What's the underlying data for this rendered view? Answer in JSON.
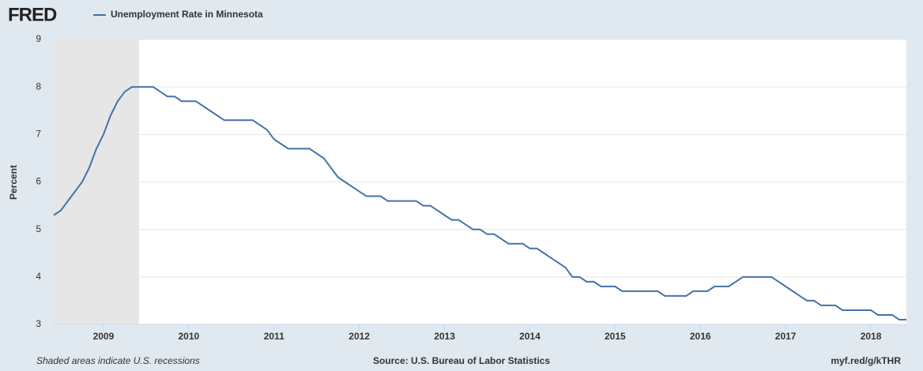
{
  "chart_data": {
    "type": "line",
    "brand": "FRED",
    "y_label": "Percent",
    "footer_left": "Shaded areas indicate U.S. recessions",
    "footer_center": "Source: U.S. Bureau of Labor Statistics",
    "footer_right": "myf.red/g/kTHR",
    "xlim": [
      "2008-06",
      "2018-06"
    ],
    "ylim": [
      3,
      9
    ],
    "yticks": [
      3,
      4,
      5,
      6,
      7,
      8,
      9
    ],
    "xticks": [
      {
        "value": "2009-01",
        "label": "2009"
      },
      {
        "value": "2010-01",
        "label": "2010"
      },
      {
        "value": "2011-01",
        "label": "2011"
      },
      {
        "value": "2012-01",
        "label": "2012"
      },
      {
        "value": "2013-01",
        "label": "2013"
      },
      {
        "value": "2014-01",
        "label": "2014"
      },
      {
        "value": "2015-01",
        "label": "2015"
      },
      {
        "value": "2016-01",
        "label": "2016"
      },
      {
        "value": "2017-01",
        "label": "2017"
      },
      {
        "value": "2018-01",
        "label": "2018"
      }
    ],
    "grid": true,
    "recessions": [
      [
        "2008-06",
        "2009-06"
      ]
    ],
    "x": [
      "2008-06",
      "2008-07",
      "2008-08",
      "2008-09",
      "2008-10",
      "2008-11",
      "2008-12",
      "2009-01",
      "2009-02",
      "2009-03",
      "2009-04",
      "2009-05",
      "2009-06",
      "2009-07",
      "2009-08",
      "2009-09",
      "2009-10",
      "2009-11",
      "2009-12",
      "2010-01",
      "2010-02",
      "2010-03",
      "2010-04",
      "2010-05",
      "2010-06",
      "2010-07",
      "2010-08",
      "2010-09",
      "2010-10",
      "2010-11",
      "2010-12",
      "2011-01",
      "2011-02",
      "2011-03",
      "2011-04",
      "2011-05",
      "2011-06",
      "2011-07",
      "2011-08",
      "2011-09",
      "2011-10",
      "2011-11",
      "2011-12",
      "2012-01",
      "2012-02",
      "2012-03",
      "2012-04",
      "2012-05",
      "2012-06",
      "2012-07",
      "2012-08",
      "2012-09",
      "2012-10",
      "2012-11",
      "2012-12",
      "2013-01",
      "2013-02",
      "2013-03",
      "2013-04",
      "2013-05",
      "2013-06",
      "2013-07",
      "2013-08",
      "2013-09",
      "2013-10",
      "2013-11",
      "2013-12",
      "2014-01",
      "2014-02",
      "2014-03",
      "2014-04",
      "2014-05",
      "2014-06",
      "2014-07",
      "2014-08",
      "2014-09",
      "2014-10",
      "2014-11",
      "2014-12",
      "2015-01",
      "2015-02",
      "2015-03",
      "2015-04",
      "2015-05",
      "2015-06",
      "2015-07",
      "2015-08",
      "2015-09",
      "2015-10",
      "2015-11",
      "2015-12",
      "2016-01",
      "2016-02",
      "2016-03",
      "2016-04",
      "2016-05",
      "2016-06",
      "2016-07",
      "2016-08",
      "2016-09",
      "2016-10",
      "2016-11",
      "2016-12",
      "2017-01",
      "2017-02",
      "2017-03",
      "2017-04",
      "2017-05",
      "2017-06",
      "2017-07",
      "2017-08",
      "2017-09",
      "2017-10",
      "2017-11",
      "2017-12",
      "2018-01",
      "2018-02",
      "2018-03",
      "2018-04",
      "2018-05",
      "2018-06"
    ],
    "series": [
      {
        "name": "Unemployment Rate in Minnesota",
        "color": "#4572a7",
        "values": [
          5.3,
          5.4,
          5.6,
          5.8,
          6.0,
          6.3,
          6.7,
          7.0,
          7.4,
          7.7,
          7.9,
          8.0,
          8.0,
          8.0,
          8.0,
          7.9,
          7.8,
          7.8,
          7.7,
          7.7,
          7.7,
          7.6,
          7.5,
          7.4,
          7.3,
          7.3,
          7.3,
          7.3,
          7.3,
          7.2,
          7.1,
          6.9,
          6.8,
          6.7,
          6.7,
          6.7,
          6.7,
          6.6,
          6.5,
          6.3,
          6.1,
          6.0,
          5.9,
          5.8,
          5.7,
          5.7,
          5.7,
          5.6,
          5.6,
          5.6,
          5.6,
          5.6,
          5.5,
          5.5,
          5.4,
          5.3,
          5.2,
          5.2,
          5.1,
          5.0,
          5.0,
          4.9,
          4.9,
          4.8,
          4.7,
          4.7,
          4.7,
          4.6,
          4.6,
          4.5,
          4.4,
          4.3,
          4.2,
          4.0,
          4.0,
          3.9,
          3.9,
          3.8,
          3.8,
          3.8,
          3.7,
          3.7,
          3.7,
          3.7,
          3.7,
          3.7,
          3.6,
          3.6,
          3.6,
          3.6,
          3.7,
          3.7,
          3.7,
          3.8,
          3.8,
          3.8,
          3.9,
          4.0,
          4.0,
          4.0,
          4.0,
          4.0,
          3.9,
          3.8,
          3.7,
          3.6,
          3.5,
          3.5,
          3.4,
          3.4,
          3.4,
          3.3,
          3.3,
          3.3,
          3.3,
          3.3,
          3.2,
          3.2,
          3.2,
          3.1,
          3.1
        ]
      }
    ]
  }
}
